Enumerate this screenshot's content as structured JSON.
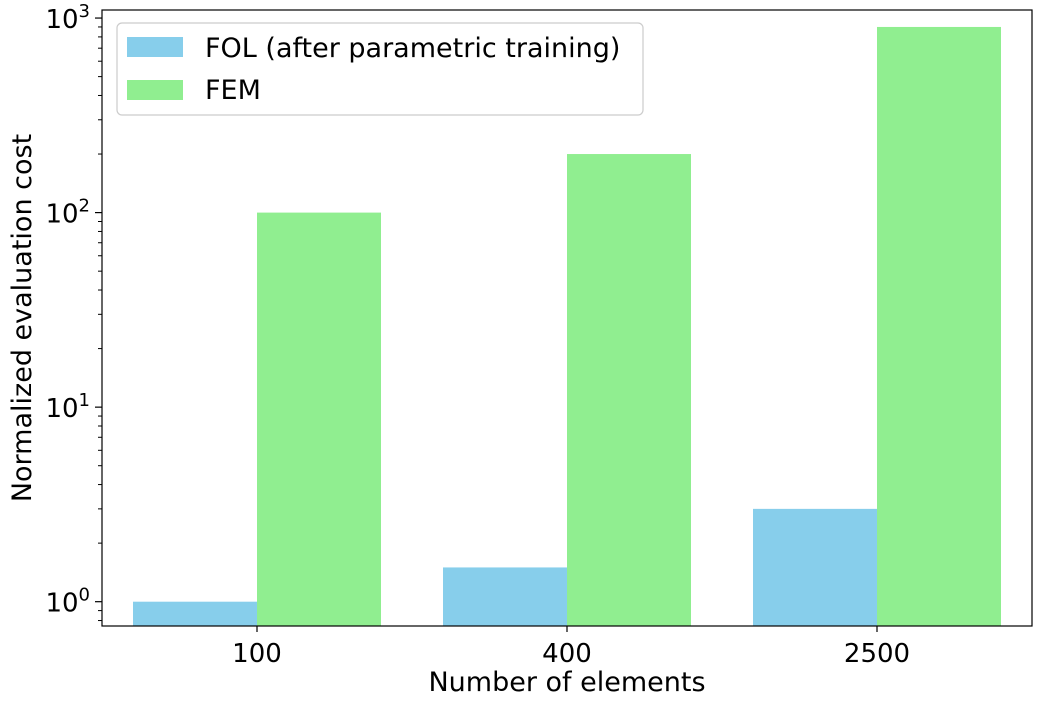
{
  "chart_data": {
    "type": "bar",
    "categories": [
      "100",
      "400",
      "2500"
    ],
    "series": [
      {
        "name": "FOL (after parametric training)",
        "values": [
          1.0,
          1.5,
          3.0
        ],
        "color": "#87ceeb"
      },
      {
        "name": "FEM",
        "values": [
          100,
          200,
          900
        ],
        "color": "#90ee90"
      }
    ],
    "xlabel": "Number of elements",
    "ylabel": "Normalized evaluation cost",
    "yscale": "log",
    "ylim": [
      0.75,
      1100
    ],
    "yticks": [
      1,
      10,
      100,
      1000
    ],
    "ytick_labels": [
      {
        "base": "10",
        "exp": "0"
      },
      {
        "base": "10",
        "exp": "1"
      },
      {
        "base": "10",
        "exp": "2"
      },
      {
        "base": "10",
        "exp": "3"
      }
    ],
    "grid": false,
    "legend_position": "top-left"
  }
}
